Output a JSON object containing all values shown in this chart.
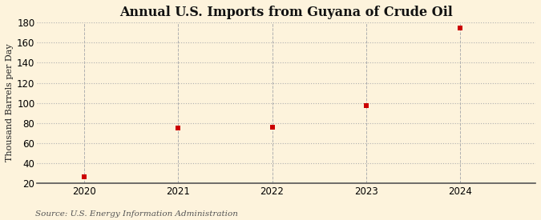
{
  "title": "Annual U.S. Imports from Guyana of Crude Oil",
  "ylabel": "Thousand Barrels per Day",
  "source": "Source: U.S. Energy Information Administration",
  "x": [
    2020,
    2021,
    2022,
    2023,
    2024
  ],
  "y": [
    26,
    75,
    76,
    97,
    175
  ],
  "xlim": [
    2019.5,
    2024.8
  ],
  "ylim": [
    20,
    180
  ],
  "yticks": [
    20,
    40,
    60,
    80,
    100,
    120,
    140,
    160,
    180
  ],
  "xticks": [
    2020,
    2021,
    2022,
    2023,
    2024
  ],
  "marker_color": "#cc0000",
  "marker_size": 18,
  "grid_color": "#b0b0b0",
  "bg_color": "#fdf3dc",
  "title_fontsize": 11.5,
  "label_fontsize": 8,
  "tick_fontsize": 8.5,
  "source_fontsize": 7.5
}
